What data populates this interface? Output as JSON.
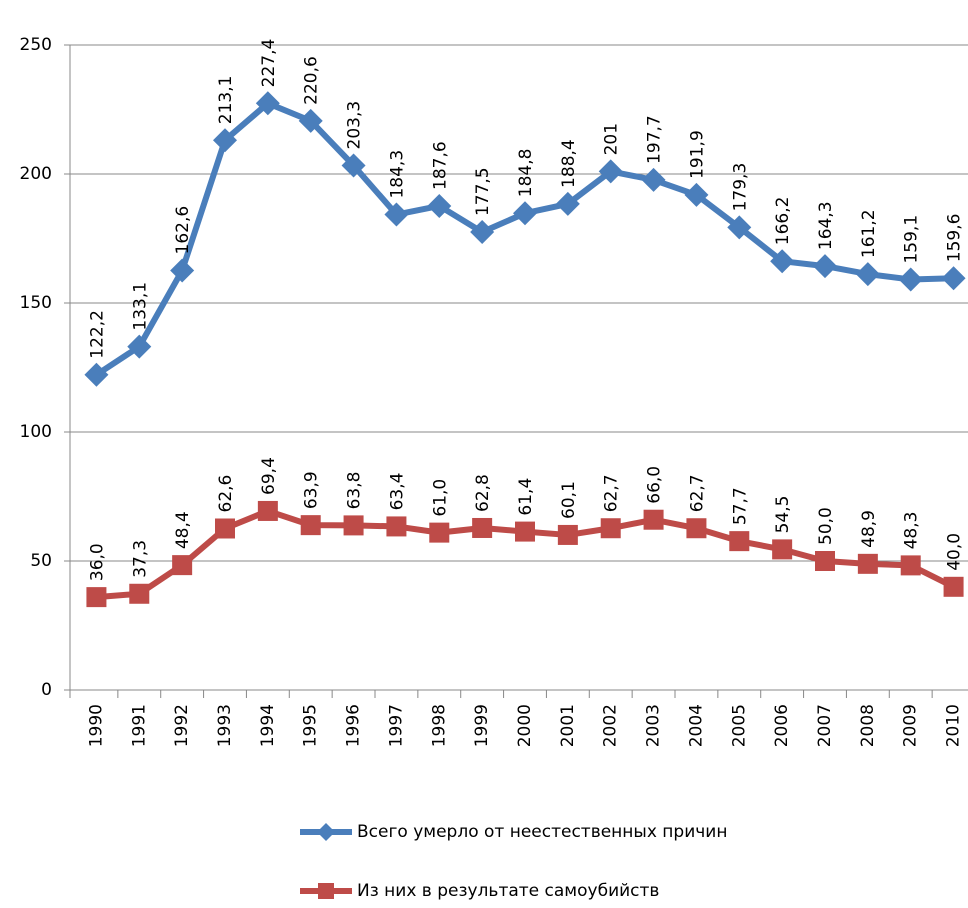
{
  "chart_data": {
    "type": "line",
    "categories": [
      "1990",
      "1991",
      "1992",
      "1993",
      "1994",
      "1995",
      "1996",
      "1997",
      "1998",
      "1999",
      "2000",
      "2001",
      "2002",
      "2003",
      "2004",
      "2005",
      "2006",
      "2007",
      "2008",
      "2009",
      "2010"
    ],
    "series": [
      {
        "name": "Всего умерло от неестественных причин",
        "color": "#4a7ebb",
        "marker": "diamond",
        "values": [
          122.2,
          133.1,
          162.6,
          213.1,
          227.4,
          220.6,
          203.3,
          184.3,
          187.6,
          177.5,
          184.8,
          188.4,
          201,
          197.7,
          191.9,
          179.3,
          166.2,
          164.3,
          161.2,
          159.1,
          159.6
        ],
        "value_labels": [
          "122,2",
          "133,1",
          "162,6",
          "213,1",
          "227,4",
          "220,6",
          "203,3",
          "184,3",
          "187,6",
          "177,5",
          "184,8",
          "188,4",
          "201",
          "197,7",
          "191,9",
          "179,3",
          "166,2",
          "164,3",
          "161,2",
          "159,1",
          "159,6"
        ]
      },
      {
        "name": "Из них в результате самоубийств",
        "color": "#be4b48",
        "marker": "square",
        "values": [
          36.0,
          37.3,
          48.4,
          62.6,
          69.4,
          63.9,
          63.8,
          63.4,
          61.0,
          62.8,
          61.4,
          60.1,
          62.7,
          66.0,
          62.7,
          57.7,
          54.5,
          50.0,
          48.9,
          48.3,
          40.0
        ],
        "value_labels": [
          "36,0",
          "37,3",
          "48,4",
          "62,6",
          "69,4",
          "63,9",
          "63,8",
          "63,4",
          "61,0",
          "62,8",
          "61,4",
          "60,1",
          "62,7",
          "66,0",
          "62,7",
          "57,7",
          "54,5",
          "50,0",
          "48,9",
          "48,3",
          "40,0"
        ]
      }
    ],
    "ylim": [
      0,
      250
    ],
    "yticks": [
      0,
      50,
      100,
      150,
      200,
      250
    ],
    "grid": true,
    "legend": "bottom"
  }
}
